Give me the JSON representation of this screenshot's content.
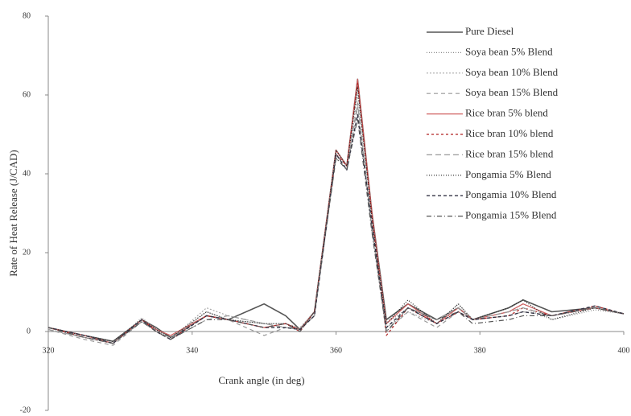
{
  "chart_data": {
    "type": "line",
    "x_label": "Crank angle (in deg)",
    "y_label": "Rate of Heat Release  (J/CAD)",
    "x": [
      320,
      325,
      329,
      333,
      335,
      337,
      342,
      345,
      350,
      353,
      355,
      357,
      360,
      361.5,
      363,
      365,
      367,
      370,
      374,
      377,
      379,
      384,
      386,
      390,
      396,
      400
    ],
    "xlim": [
      320,
      400
    ],
    "xticks": [
      320,
      340,
      360,
      380,
      400
    ],
    "ylim": [
      -20,
      80
    ],
    "yticks": [
      -20,
      0,
      20,
      40,
      60,
      80
    ],
    "legend": "upper right",
    "series": [
      {
        "name": "Pure Diesel",
        "color": "#555555",
        "dash": "",
        "width": 1.6,
        "values": [
          1,
          -1,
          -2.5,
          3,
          1,
          -1.5,
          4,
          3,
          7,
          4,
          0.5,
          5,
          46,
          42,
          64,
          30,
          3,
          7,
          3,
          6,
          3,
          6,
          8,
          5,
          6,
          4.5
        ]
      },
      {
        "name": "Soya bean 5% Blend",
        "color": "#888888",
        "dash": "1 2",
        "width": 1.2,
        "values": [
          1,
          -1.5,
          -3,
          3.5,
          0.5,
          -2,
          5,
          3,
          2,
          1,
          1,
          4,
          45,
          42,
          62,
          28,
          2,
          6,
          2,
          5,
          3,
          5,
          6,
          3,
          5.5,
          4.5
        ]
      },
      {
        "name": "Soya bean 10% Blend",
        "color": "#aaaaaa",
        "dash": "2 2",
        "width": 1.2,
        "values": [
          0.5,
          -1.5,
          -3,
          3,
          0,
          -2,
          6,
          4,
          2,
          2,
          1,
          5,
          45,
          41,
          60,
          25,
          1,
          5,
          2,
          7,
          3,
          5,
          7,
          4,
          6,
          4.5
        ]
      },
      {
        "name": "Soya bean 15% Blend",
        "color": "#999999",
        "dash": "5 4",
        "width": 1.2,
        "values": [
          0.5,
          -2,
          -3.5,
          2.5,
          0,
          -1.5,
          4,
          3,
          -1,
          1,
          0.5,
          4,
          44,
          41,
          57,
          26,
          0,
          5,
          1,
          5,
          3,
          4,
          5,
          4,
          6,
          4.5
        ]
      },
      {
        "name": "Rice bran 5% blend",
        "color": "#d06060",
        "dash": "",
        "width": 1.2,
        "values": [
          1,
          -1,
          -3,
          3,
          0.5,
          -1,
          4,
          3,
          1,
          2,
          0.5,
          5,
          46,
          42,
          64,
          30,
          2,
          7,
          2,
          6,
          3,
          5,
          7,
          4,
          6,
          4.5
        ]
      },
      {
        "name": "Rice bran 10% blend",
        "color": "#b02020",
        "dash": "3 3",
        "width": 1.2,
        "values": [
          1,
          -1.5,
          -3,
          3,
          0,
          -2,
          4,
          3,
          1,
          2,
          0,
          5,
          45,
          42,
          63,
          29,
          -1,
          6,
          2,
          5,
          3,
          4,
          6,
          4,
          6.5,
          4.5
        ]
      },
      {
        "name": "Rice bran 15% blend",
        "color": "#999999",
        "dash": "7 4",
        "width": 1.2,
        "values": [
          0.5,
          -1.5,
          -3,
          2.5,
          0,
          -2,
          3,
          4,
          2,
          1,
          0.5,
          4,
          45,
          41,
          58,
          26,
          0,
          6,
          3,
          6,
          3,
          5,
          6,
          4,
          6,
          4.5
        ]
      },
      {
        "name": "Pongamia 5% Blend",
        "color": "#222222",
        "dash": "1 2",
        "width": 1.2,
        "values": [
          1,
          -1,
          -2.5,
          3,
          0.5,
          -1.5,
          5,
          3,
          2,
          2,
          0.5,
          5,
          46,
          42,
          62,
          29,
          2,
          8,
          2,
          7,
          3,
          6,
          8,
          3,
          6,
          4.5
        ]
      },
      {
        "name": "Pongamia 10% Blend",
        "color": "#333344",
        "dash": "4 3",
        "width": 1.4,
        "values": [
          1,
          -1,
          -3,
          3,
          0,
          -2,
          4,
          3,
          1,
          1,
          0.5,
          4,
          45,
          41,
          55,
          27,
          1,
          6,
          2,
          5,
          3,
          4,
          5,
          4,
          6.5,
          4.5
        ]
      },
      {
        "name": "Pongamia 15% Blend",
        "color": "#555555",
        "dash": "6 3 1 3",
        "width": 1.2,
        "values": [
          1,
          -1.5,
          -3,
          2.5,
          0,
          -2,
          3,
          3,
          1,
          2,
          0,
          5,
          44,
          41,
          54,
          25,
          0,
          6,
          3,
          5,
          2,
          3,
          4,
          4,
          6,
          4.5
        ]
      }
    ]
  }
}
